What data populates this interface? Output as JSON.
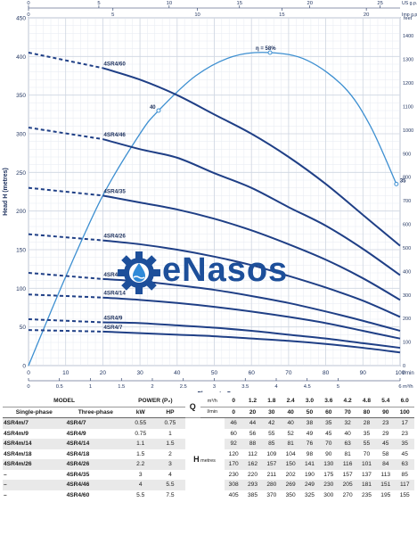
{
  "chart_data": {
    "type": "line",
    "title": "",
    "xlabel": "Flow rate Q",
    "ylabel": "Head H (metres)",
    "xlim": [
      0,
      100
    ],
    "ylim": [
      0,
      450
    ],
    "x_unit": "l/min",
    "x_ticks": [
      0,
      10,
      20,
      30,
      40,
      50,
      60,
      70,
      80,
      90,
      100
    ],
    "y_ticks": [
      0,
      50,
      100,
      150,
      200,
      250,
      300,
      350,
      400,
      450
    ],
    "top_axis_1": {
      "unit": "US g.p.m.",
      "ticks": [
        "0",
        "5",
        "10",
        "15",
        "20",
        "25"
      ],
      "values_lmin": [
        0,
        18.93,
        37.85,
        56.78,
        75.71,
        94.64
      ]
    },
    "top_axis_2": {
      "unit": "Imp g.p.m.",
      "ticks": [
        "0",
        "5",
        "10",
        "15",
        "20"
      ],
      "values_lmin": [
        0,
        22.73,
        45.46,
        68.19,
        90.92
      ]
    },
    "bottom_axis_2": {
      "unit": "m³/h",
      "ticks": [
        "0",
        "0.5",
        "1",
        "1.5",
        "2",
        "2.5",
        "3",
        "3.5",
        "4",
        "4.5",
        "5",
        "6"
      ],
      "values_lmin": [
        0,
        8.33,
        16.67,
        25,
        33.33,
        41.67,
        50,
        58.33,
        66.67,
        75,
        83.33,
        100
      ]
    },
    "right_axis": {
      "unit": "feet",
      "ticks": [
        "0",
        "100",
        "200",
        "300",
        "400",
        "500",
        "600",
        "700",
        "800",
        "900",
        "1000",
        "1100",
        "1200",
        "1300",
        "1400"
      ]
    },
    "x": [
      0,
      20,
      30,
      40,
      50,
      60,
      70,
      80,
      90,
      100
    ],
    "operating_range_start": 20,
    "series": [
      {
        "name": "4SR4/60",
        "values": [
          405,
          385,
          370,
          350,
          325,
          300,
          270,
          235,
          195,
          155
        ]
      },
      {
        "name": "4SR4/46",
        "values": [
          308,
          293,
          280,
          269,
          249,
          230,
          205,
          181,
          151,
          117
        ]
      },
      {
        "name": "4SR4/35",
        "values": [
          230,
          220,
          211,
          202,
          190,
          175,
          157,
          137,
          113,
          85
        ]
      },
      {
        "name": "4SR4/26",
        "values": [
          170,
          162,
          157,
          150,
          141,
          130,
          116,
          101,
          84,
          63
        ]
      },
      {
        "name": "4SR4/18",
        "values": [
          120,
          112,
          109,
          104,
          98,
          90,
          81,
          70,
          58,
          45
        ]
      },
      {
        "name": "4SR4/14",
        "values": [
          92,
          88,
          85,
          81,
          76,
          70,
          63,
          55,
          45,
          35
        ]
      },
      {
        "name": "4SR4/9",
        "values": [
          60,
          56,
          55,
          52,
          49,
          45,
          40,
          35,
          29,
          23
        ]
      },
      {
        "name": "4SR4/7",
        "values": [
          46,
          44,
          42,
          40,
          38,
          35,
          32,
          28,
          23,
          17
        ]
      }
    ],
    "efficiency": {
      "points": [
        {
          "x": 0,
          "y": 0
        },
        {
          "x": 10,
          "y": 115
        },
        {
          "x": 20,
          "y": 220
        },
        {
          "x": 30,
          "y": 300
        },
        {
          "x": 35,
          "y": 330
        },
        {
          "x": 45,
          "y": 375
        },
        {
          "x": 55,
          "y": 400
        },
        {
          "x": 65,
          "y": 405
        },
        {
          "x": 75,
          "y": 395
        },
        {
          "x": 85,
          "y": 360
        },
        {
          "x": 92,
          "y": 310
        },
        {
          "x": 99,
          "y": 235
        }
      ],
      "labels": [
        {
          "x": 35,
          "y": 330,
          "text": "40"
        },
        {
          "x": 65,
          "y": 405,
          "text": "η = 58%"
        },
        {
          "x": 99,
          "y": 235,
          "text": "35"
        }
      ]
    }
  },
  "logo": {
    "text": "eNasos"
  },
  "table": {
    "model_header": "MODEL",
    "power_header": "POWER (P₂)",
    "q_symbol": "Q",
    "h_symbol": "H",
    "h_unit": "metres",
    "single_phase_header": "Single-phase",
    "three_phase_header": "Three-phase",
    "kw_header": "kW",
    "hp_header": "HP",
    "q_unit_1": "m³/h",
    "q_unit_2": "l/min",
    "q_m3h": [
      "0",
      "1.2",
      "1.8",
      "2.4",
      "3.0",
      "3.6",
      "4.2",
      "4.8",
      "5.4",
      "6.0"
    ],
    "q_lmin": [
      "0",
      "20",
      "30",
      "40",
      "50",
      "60",
      "70",
      "80",
      "90",
      "100"
    ],
    "rows": [
      {
        "single": "4SR4m/7",
        "three": "4SR4/7",
        "kw": "0.55",
        "hp": "0.75",
        "h": [
          "46",
          "44",
          "42",
          "40",
          "38",
          "35",
          "32",
          "28",
          "23",
          "17"
        ]
      },
      {
        "single": "4SR4m/9",
        "three": "4SR4/9",
        "kw": "0.75",
        "hp": "1",
        "h": [
          "60",
          "56",
          "55",
          "52",
          "49",
          "45",
          "40",
          "35",
          "29",
          "23"
        ]
      },
      {
        "single": "4SR4m/14",
        "three": "4SR4/14",
        "kw": "1.1",
        "hp": "1.5",
        "h": [
          "92",
          "88",
          "85",
          "81",
          "76",
          "70",
          "63",
          "55",
          "45",
          "35"
        ]
      },
      {
        "single": "4SR4m/18",
        "three": "4SR4/18",
        "kw": "1.5",
        "hp": "2",
        "h": [
          "120",
          "112",
          "109",
          "104",
          "98",
          "90",
          "81",
          "70",
          "58",
          "45"
        ]
      },
      {
        "single": "4SR4m/26",
        "three": "4SR4/26",
        "kw": "2.2",
        "hp": "3",
        "h": [
          "170",
          "162",
          "157",
          "150",
          "141",
          "130",
          "116",
          "101",
          "84",
          "63"
        ]
      },
      {
        "single": "–",
        "three": "4SR4/35",
        "kw": "3",
        "hp": "4",
        "h": [
          "230",
          "220",
          "211",
          "202",
          "190",
          "175",
          "157",
          "137",
          "113",
          "85"
        ]
      },
      {
        "single": "–",
        "three": "4SR4/46",
        "kw": "4",
        "hp": "5.5",
        "h": [
          "308",
          "293",
          "280",
          "269",
          "249",
          "230",
          "205",
          "181",
          "151",
          "117"
        ]
      },
      {
        "single": "–",
        "three": "4SR4/60",
        "kw": "5.5",
        "hp": "7.5",
        "h": [
          "405",
          "385",
          "370",
          "350",
          "325",
          "300",
          "270",
          "235",
          "195",
          "155"
        ]
      }
    ]
  },
  "colors": {
    "curve": "#1f3f86",
    "efficiency": "#3d8fd1",
    "grid": "#cfd6e2",
    "axis": "#1b2f5c"
  }
}
